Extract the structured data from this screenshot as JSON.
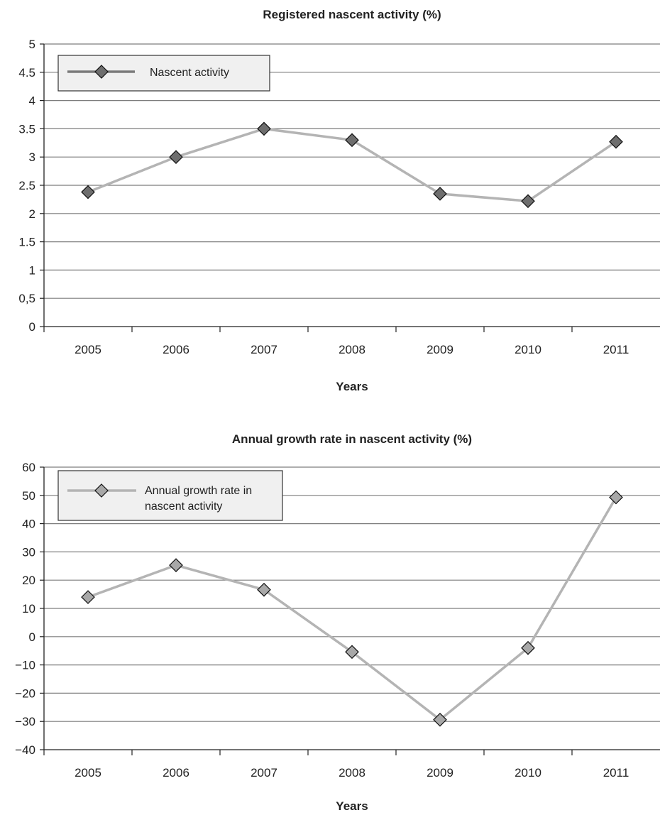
{
  "chart_data": [
    {
      "type": "line",
      "title": "Registered nascent activity (%)",
      "xlabel": "Years",
      "ylabel": "",
      "categories": [
        "2005",
        "2006",
        "2007",
        "2008",
        "2009",
        "2010",
        "2011"
      ],
      "y_ticks": [
        "0",
        "0,5",
        "1",
        "1.5",
        "2",
        "2.5",
        "3",
        "3.5",
        "4",
        "4.5",
        "5"
      ],
      "ylim": [
        0,
        5
      ],
      "grid": true,
      "legend_position": "top-left",
      "series": [
        {
          "name": "Nascent activity",
          "values": [
            2.38,
            3.0,
            3.5,
            3.3,
            2.35,
            2.22,
            3.27
          ]
        }
      ],
      "colors": {
        "line": "#b4b4b4",
        "legend_line": "#7a7a7a",
        "marker": "#6e6e6e",
        "legend_bg": "#f0f0f0"
      }
    },
    {
      "type": "line",
      "title": "Annual growth rate in nascent activity (%)",
      "xlabel": "Years",
      "ylabel": "",
      "categories": [
        "2005",
        "2006",
        "2007",
        "2008",
        "2009",
        "2010",
        "2011"
      ],
      "y_ticks": [
        "−40",
        "−30",
        "−20",
        "−10",
        "0",
        "10",
        "20",
        "30",
        "40",
        "50",
        "60"
      ],
      "ylim": [
        -40,
        60
      ],
      "grid": true,
      "legend_position": "top-left",
      "series": [
        {
          "name": "Annual growth rate in nascent activity",
          "legend_lines": [
            "Annual growth rate in",
            "nascent activity"
          ],
          "values": [
            14,
            25.3,
            16.6,
            -5.4,
            -29.4,
            -4,
            49.3
          ]
        }
      ],
      "colors": {
        "line": "#b4b4b4",
        "legend_line": "#b4b4b4",
        "marker": "#a8a8a8",
        "legend_bg": "#f0f0f0"
      }
    }
  ]
}
